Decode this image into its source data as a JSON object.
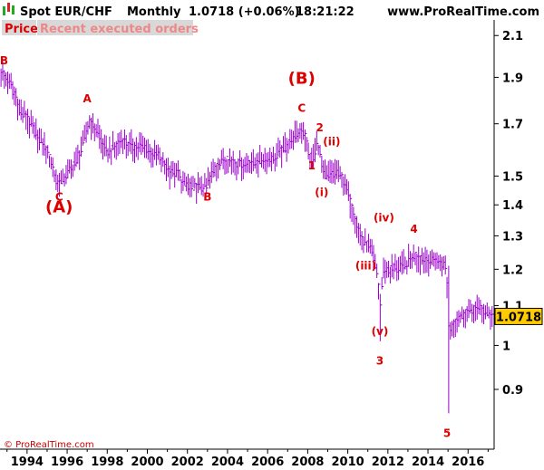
{
  "header": {
    "instrument": "Spot EUR/CHF",
    "period": "Monthly",
    "quote": "1.0718 (+0.06%)",
    "time": "18:21:22",
    "site": "www.ProRealTime.com"
  },
  "tabs": {
    "price": "Price",
    "orders": "Recent executed orders"
  },
  "footer": {
    "copyright": "© ProRealTime.com"
  },
  "colors": {
    "bars": "#9900cc",
    "labels": "#dd0000",
    "last_price_bg": "#ffcc00",
    "axis": "#000000",
    "tab_bg": "#d8d8d8",
    "icon_green": "#22aa22",
    "icon_red": "#dd2222"
  },
  "chart_data": {
    "type": "bar",
    "subtype": "ohlc",
    "scale": "log",
    "ylim": [
      0.78,
      2.18
    ],
    "xlim": [
      1992.65,
      2017.3
    ],
    "y_ticks": [
      {
        "value": 2.1,
        "label": "2.1"
      },
      {
        "value": 1.9,
        "label": "1.9"
      },
      {
        "value": 1.7,
        "label": "1.7"
      },
      {
        "value": 1.5,
        "label": "1.5"
      },
      {
        "value": 1.4,
        "label": "1.4"
      },
      {
        "value": 1.3,
        "label": "1.3"
      },
      {
        "value": 1.2,
        "label": "1.2"
      },
      {
        "value": 1.1,
        "label": "1.1"
      },
      {
        "value": 1.0,
        "label": "1"
      },
      {
        "value": 0.9,
        "label": "0.9"
      }
    ],
    "x_ticks": [
      {
        "value": 1994,
        "label": "1994"
      },
      {
        "value": 1996,
        "label": "1996"
      },
      {
        "value": 1998,
        "label": "1998"
      },
      {
        "value": 2000,
        "label": "2000"
      },
      {
        "value": 2002,
        "label": "2002"
      },
      {
        "value": 2004,
        "label": "2004"
      },
      {
        "value": 2006,
        "label": "2006"
      },
      {
        "value": 2008,
        "label": "2008"
      },
      {
        "value": 2010,
        "label": "2010"
      },
      {
        "value": 2012,
        "label": "2012"
      },
      {
        "value": 2014,
        "label": "2014"
      },
      {
        "value": 2016,
        "label": "2016"
      }
    ],
    "last_price": {
      "value": 1.0718,
      "label": "1.0718"
    },
    "path": [
      [
        1992.7,
        1.92
      ],
      [
        1993.2,
        1.86
      ],
      [
        1993.6,
        1.76
      ],
      [
        1994.0,
        1.72
      ],
      [
        1994.4,
        1.66
      ],
      [
        1994.8,
        1.62
      ],
      [
        1995.2,
        1.55
      ],
      [
        1995.5,
        1.47
      ],
      [
        1995.9,
        1.5
      ],
      [
        1996.4,
        1.55
      ],
      [
        1996.8,
        1.62
      ],
      [
        1997.1,
        1.71
      ],
      [
        1997.5,
        1.67
      ],
      [
        1997.9,
        1.59
      ],
      [
        1998.3,
        1.6
      ],
      [
        1998.7,
        1.63
      ],
      [
        1999.2,
        1.61
      ],
      [
        1999.7,
        1.61
      ],
      [
        2000.2,
        1.59
      ],
      [
        2000.6,
        1.57
      ],
      [
        2001.0,
        1.52
      ],
      [
        2001.5,
        1.51
      ],
      [
        2001.8,
        1.47
      ],
      [
        2002.3,
        1.46
      ],
      [
        2002.9,
        1.46
      ],
      [
        2003.3,
        1.52
      ],
      [
        2003.8,
        1.56
      ],
      [
        2004.3,
        1.55
      ],
      [
        2004.8,
        1.54
      ],
      [
        2005.3,
        1.55
      ],
      [
        2005.8,
        1.56
      ],
      [
        2006.3,
        1.57
      ],
      [
        2006.8,
        1.6
      ],
      [
        2007.3,
        1.65
      ],
      [
        2007.8,
        1.67
      ],
      [
        2008.0,
        1.6
      ],
      [
        2008.2,
        1.55
      ],
      [
        2008.5,
        1.63
      ],
      [
        2008.8,
        1.5
      ],
      [
        2009.2,
        1.51
      ],
      [
        2009.6,
        1.51
      ],
      [
        2010.0,
        1.44
      ],
      [
        2010.4,
        1.34
      ],
      [
        2010.8,
        1.27
      ],
      [
        2011.0,
        1.28
      ],
      [
        2011.3,
        1.22
      ],
      [
        2011.5,
        1.18
      ],
      [
        2011.6,
        1.09
      ],
      [
        2011.75,
        1.2
      ],
      [
        2012.2,
        1.2
      ],
      [
        2012.8,
        1.21
      ],
      [
        2013.3,
        1.24
      ],
      [
        2013.8,
        1.23
      ],
      [
        2014.4,
        1.22
      ],
      [
        2014.9,
        1.21
      ],
      [
        2015.05,
        1.04
      ],
      [
        2015.4,
        1.06
      ],
      [
        2015.8,
        1.08
      ],
      [
        2016.2,
        1.09
      ],
      [
        2016.6,
        1.09
      ],
      [
        2017.0,
        1.08
      ],
      [
        2017.2,
        1.075
      ]
    ],
    "annotations": [
      {
        "text": "B",
        "x": 1992.85,
        "y": 1.96,
        "size": "small"
      },
      {
        "text": "A",
        "x": 1997.0,
        "y": 1.79,
        "size": "small"
      },
      {
        "text": "C",
        "x": 1995.6,
        "y": 1.415,
        "size": "small"
      },
      {
        "text": "(A)",
        "x": 1995.6,
        "y": 1.375,
        "size": "large"
      },
      {
        "text": "(B)",
        "x": 2007.7,
        "y": 1.87,
        "size": "large"
      },
      {
        "text": "C",
        "x": 2007.7,
        "y": 1.75,
        "size": "small"
      },
      {
        "text": "B",
        "x": 2003.0,
        "y": 1.415,
        "size": "small"
      },
      {
        "text": "2",
        "x": 2008.6,
        "y": 1.67,
        "size": "small"
      },
      {
        "text": "(ii)",
        "x": 2009.2,
        "y": 1.615,
        "size": "small"
      },
      {
        "text": "1",
        "x": 2008.2,
        "y": 1.525,
        "size": "small"
      },
      {
        "text": "(i)",
        "x": 2008.7,
        "y": 1.43,
        "size": "small"
      },
      {
        "text": "(iv)",
        "x": 2011.8,
        "y": 1.345,
        "size": "small"
      },
      {
        "text": "4",
        "x": 2013.3,
        "y": 1.31,
        "size": "small"
      },
      {
        "text": "(iii)",
        "x": 2010.9,
        "y": 1.2,
        "size": "small"
      },
      {
        "text": "(v)",
        "x": 2011.6,
        "y": 1.025,
        "size": "small"
      },
      {
        "text": "3",
        "x": 2011.6,
        "y": 0.955,
        "size": "small"
      },
      {
        "text": "5",
        "x": 2014.95,
        "y": 0.803,
        "size": "small"
      }
    ]
  }
}
